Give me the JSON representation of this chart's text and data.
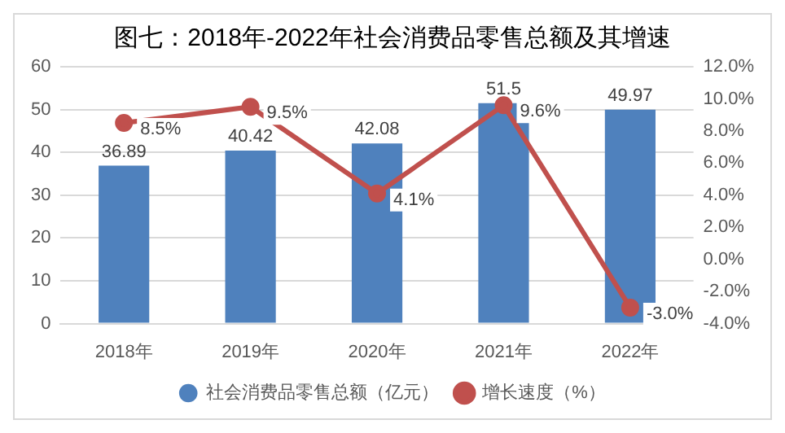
{
  "chart_data": {
    "type": "bar",
    "title": "图七：2018年-2022年社会消费品零售总额及其增速",
    "categories": [
      "2018年",
      "2019年",
      "2020年",
      "2021年",
      "2022年"
    ],
    "series": [
      {
        "name": "社会消费品零售总额（亿元）",
        "color": "#4f81bd",
        "values": [
          36.89,
          40.42,
          42.08,
          51.5,
          49.97
        ],
        "value_labels": [
          "36.89",
          "40.42",
          "42.08",
          "51.5",
          "49.97"
        ]
      },
      {
        "name": "增长速度（%）",
        "type": "line",
        "axis": "y2",
        "color": "#c0504d",
        "marker": "circle",
        "values": [
          8.5,
          9.5,
          4.1,
          9.6,
          -3.0
        ],
        "value_labels": [
          "8.5%",
          "9.5%",
          "4.1%",
          "9.6%",
          "-3.0%"
        ]
      }
    ],
    "ylim": [
      0,
      60
    ],
    "yticks": [
      0,
      10,
      20,
      30,
      40,
      50,
      60
    ],
    "y2lim": [
      -4,
      12
    ],
    "y2ticks": [
      {
        "value": -4,
        "label": "-4.0%"
      },
      {
        "value": -2,
        "label": "-2.0%"
      },
      {
        "value": 0,
        "label": "0.0%"
      },
      {
        "value": 2,
        "label": "2.0%"
      },
      {
        "value": 4,
        "label": "4.0%"
      },
      {
        "value": 6,
        "label": "6.0%"
      },
      {
        "value": 8,
        "label": "8.0%"
      },
      {
        "value": 10,
        "label": "10.0%"
      },
      {
        "value": 12,
        "label": "12.0%"
      }
    ],
    "grid": "y",
    "legend": "bottom"
  }
}
